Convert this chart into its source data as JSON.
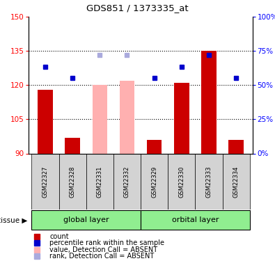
{
  "title": "GDS851 / 1373335_at",
  "samples": [
    "GSM22327",
    "GSM22328",
    "GSM22331",
    "GSM22332",
    "GSM22329",
    "GSM22330",
    "GSM22333",
    "GSM22334"
  ],
  "count_values": [
    118,
    97,
    120,
    122,
    96,
    121,
    135,
    96
  ],
  "rank_values": [
    128,
    123,
    133,
    133,
    123,
    128,
    133,
    123
  ],
  "absent": [
    false,
    false,
    true,
    true,
    false,
    false,
    false,
    false
  ],
  "ylim_left": [
    90,
    150
  ],
  "ylim_right": [
    0,
    100
  ],
  "yticks_left": [
    90,
    105,
    120,
    135,
    150
  ],
  "yticks_right": [
    0,
    25,
    50,
    75,
    100
  ],
  "group_defs": [
    {
      "label": "global layer",
      "indices": [
        0,
        1,
        2,
        3
      ]
    },
    {
      "label": "orbital layer",
      "indices": [
        4,
        5,
        6,
        7
      ]
    }
  ],
  "bar_color_present": "#cc0000",
  "bar_color_absent": "#ffb0b0",
  "rank_color_present": "#0000cc",
  "rank_color_absent": "#aaaadd",
  "bar_width": 0.55,
  "base_value": 90,
  "sample_box_color": "#d3d3d3",
  "tissue_color": "#90ee90",
  "legend_items": [
    {
      "label": "count",
      "color": "#cc0000"
    },
    {
      "label": "percentile rank within the sample",
      "color": "#0000cc"
    },
    {
      "label": "value, Detection Call = ABSENT",
      "color": "#ffb0b0"
    },
    {
      "label": "rank, Detection Call = ABSENT",
      "color": "#aaaadd"
    }
  ]
}
